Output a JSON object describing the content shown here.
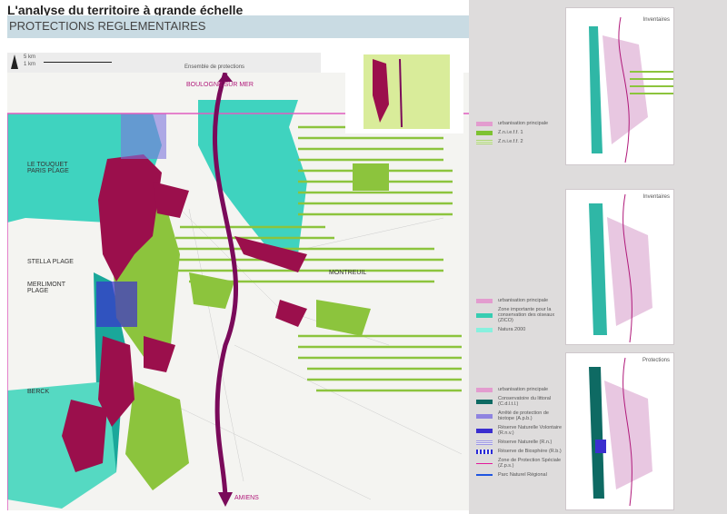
{
  "header": {
    "title": "L'analyse du territoire à grande échelle",
    "subtitle": "PROTECTIONS REGLEMENTAIRES"
  },
  "scale": {
    "km5": "5 km",
    "km1": "1 km",
    "map_title": "Ensemble de protections"
  },
  "towns": {
    "boulogne": "BOULOGNE SUR MER",
    "touquet": "LE TOUQUET PARIS PLAGE",
    "stella": "STELLA PLAGE",
    "merlimont": "MERLIMONT PLAGE",
    "berck": "BERCK",
    "montreuil": "MONTREUIL",
    "amiens": "AMIENS"
  },
  "panels": [
    {
      "title": "Inventaires"
    },
    {
      "title": "Inventaires"
    },
    {
      "title": "Protections"
    }
  ],
  "legends": {
    "inventaires1": [
      {
        "label": "urbanisation principale",
        "color": "#e39ccf"
      },
      {
        "label": "Z.n.i.e.f.f. 1",
        "color": "#7ec232"
      },
      {
        "label": "Z.n.i.e.f.f. 2",
        "color": "#a9d46a"
      }
    ],
    "inventaires2": [
      {
        "label": "urbanisation principale",
        "color": "#e39ccf"
      },
      {
        "label": "Zone importante pour la conservation des oiseaux (ZICO)",
        "color": "#37cdb2"
      },
      {
        "label": "Natura 2000",
        "color": "#88f0de"
      }
    ],
    "protections": [
      {
        "label": "urbanisation principale",
        "color": "#e39ccf"
      },
      {
        "label": "Conservatoire du littoral (C.d.l.t.l.)",
        "color": "#0e6a63"
      },
      {
        "label": "Arrêté de protection de biotope (A.p.b.)",
        "color": "#8f84e0"
      },
      {
        "label": "Réserve Naturelle Volontaire (R.n.v.)",
        "color": "#3b2fcf"
      },
      {
        "label": "Réserve Naturelle (R.n.)",
        "color": "#9c95e6"
      },
      {
        "label": "Réserve de Biosphère (R.b.)",
        "color": "#2a2ad8"
      },
      {
        "label": "Zone de Protection Spéciale (Z.p.s.)",
        "color": "#e2189b"
      },
      {
        "label": "Parc Naturel Régional",
        "color": "#1f55e0"
      }
    ]
  },
  "colors": {
    "urban": "#9b0f4c",
    "znieff": "#8cc43d",
    "zico": "#3fd3bf",
    "route": "#7a0a5a"
  }
}
